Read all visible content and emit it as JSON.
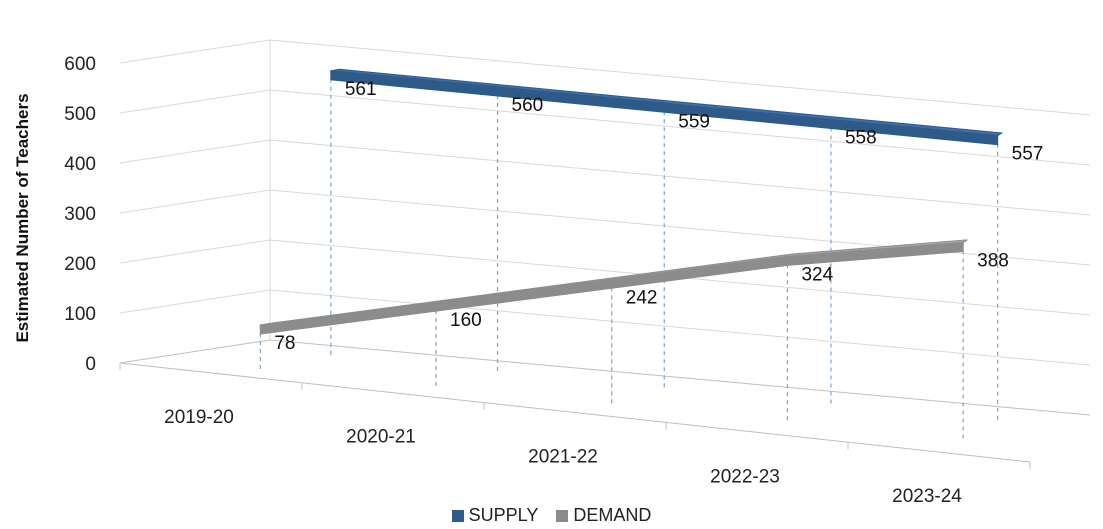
{
  "chart_data": {
    "type": "line",
    "style": "3d-ribbon",
    "categories": [
      "2019-20",
      "2020-21",
      "2021-22",
      "2022-23",
      "2023-24"
    ],
    "series": [
      {
        "name": "SUPPLY",
        "values": [
          561,
          560,
          559,
          558,
          557
        ],
        "color": "#2e5a8a"
      },
      {
        "name": "DEMAND",
        "values": [
          78,
          160,
          242,
          324,
          388
        ],
        "color": "#8c8c8c"
      }
    ],
    "ylabel": "Estimated Number of Teachers",
    "xlabel": "",
    "ylim": [
      0,
      600
    ],
    "yticks": [
      "0",
      "100",
      "200",
      "300",
      "400",
      "500",
      "600"
    ],
    "grid": true,
    "legend_position": "bottom"
  },
  "legend": {
    "supply": "SUPPLY",
    "demand": "DEMAND"
  }
}
